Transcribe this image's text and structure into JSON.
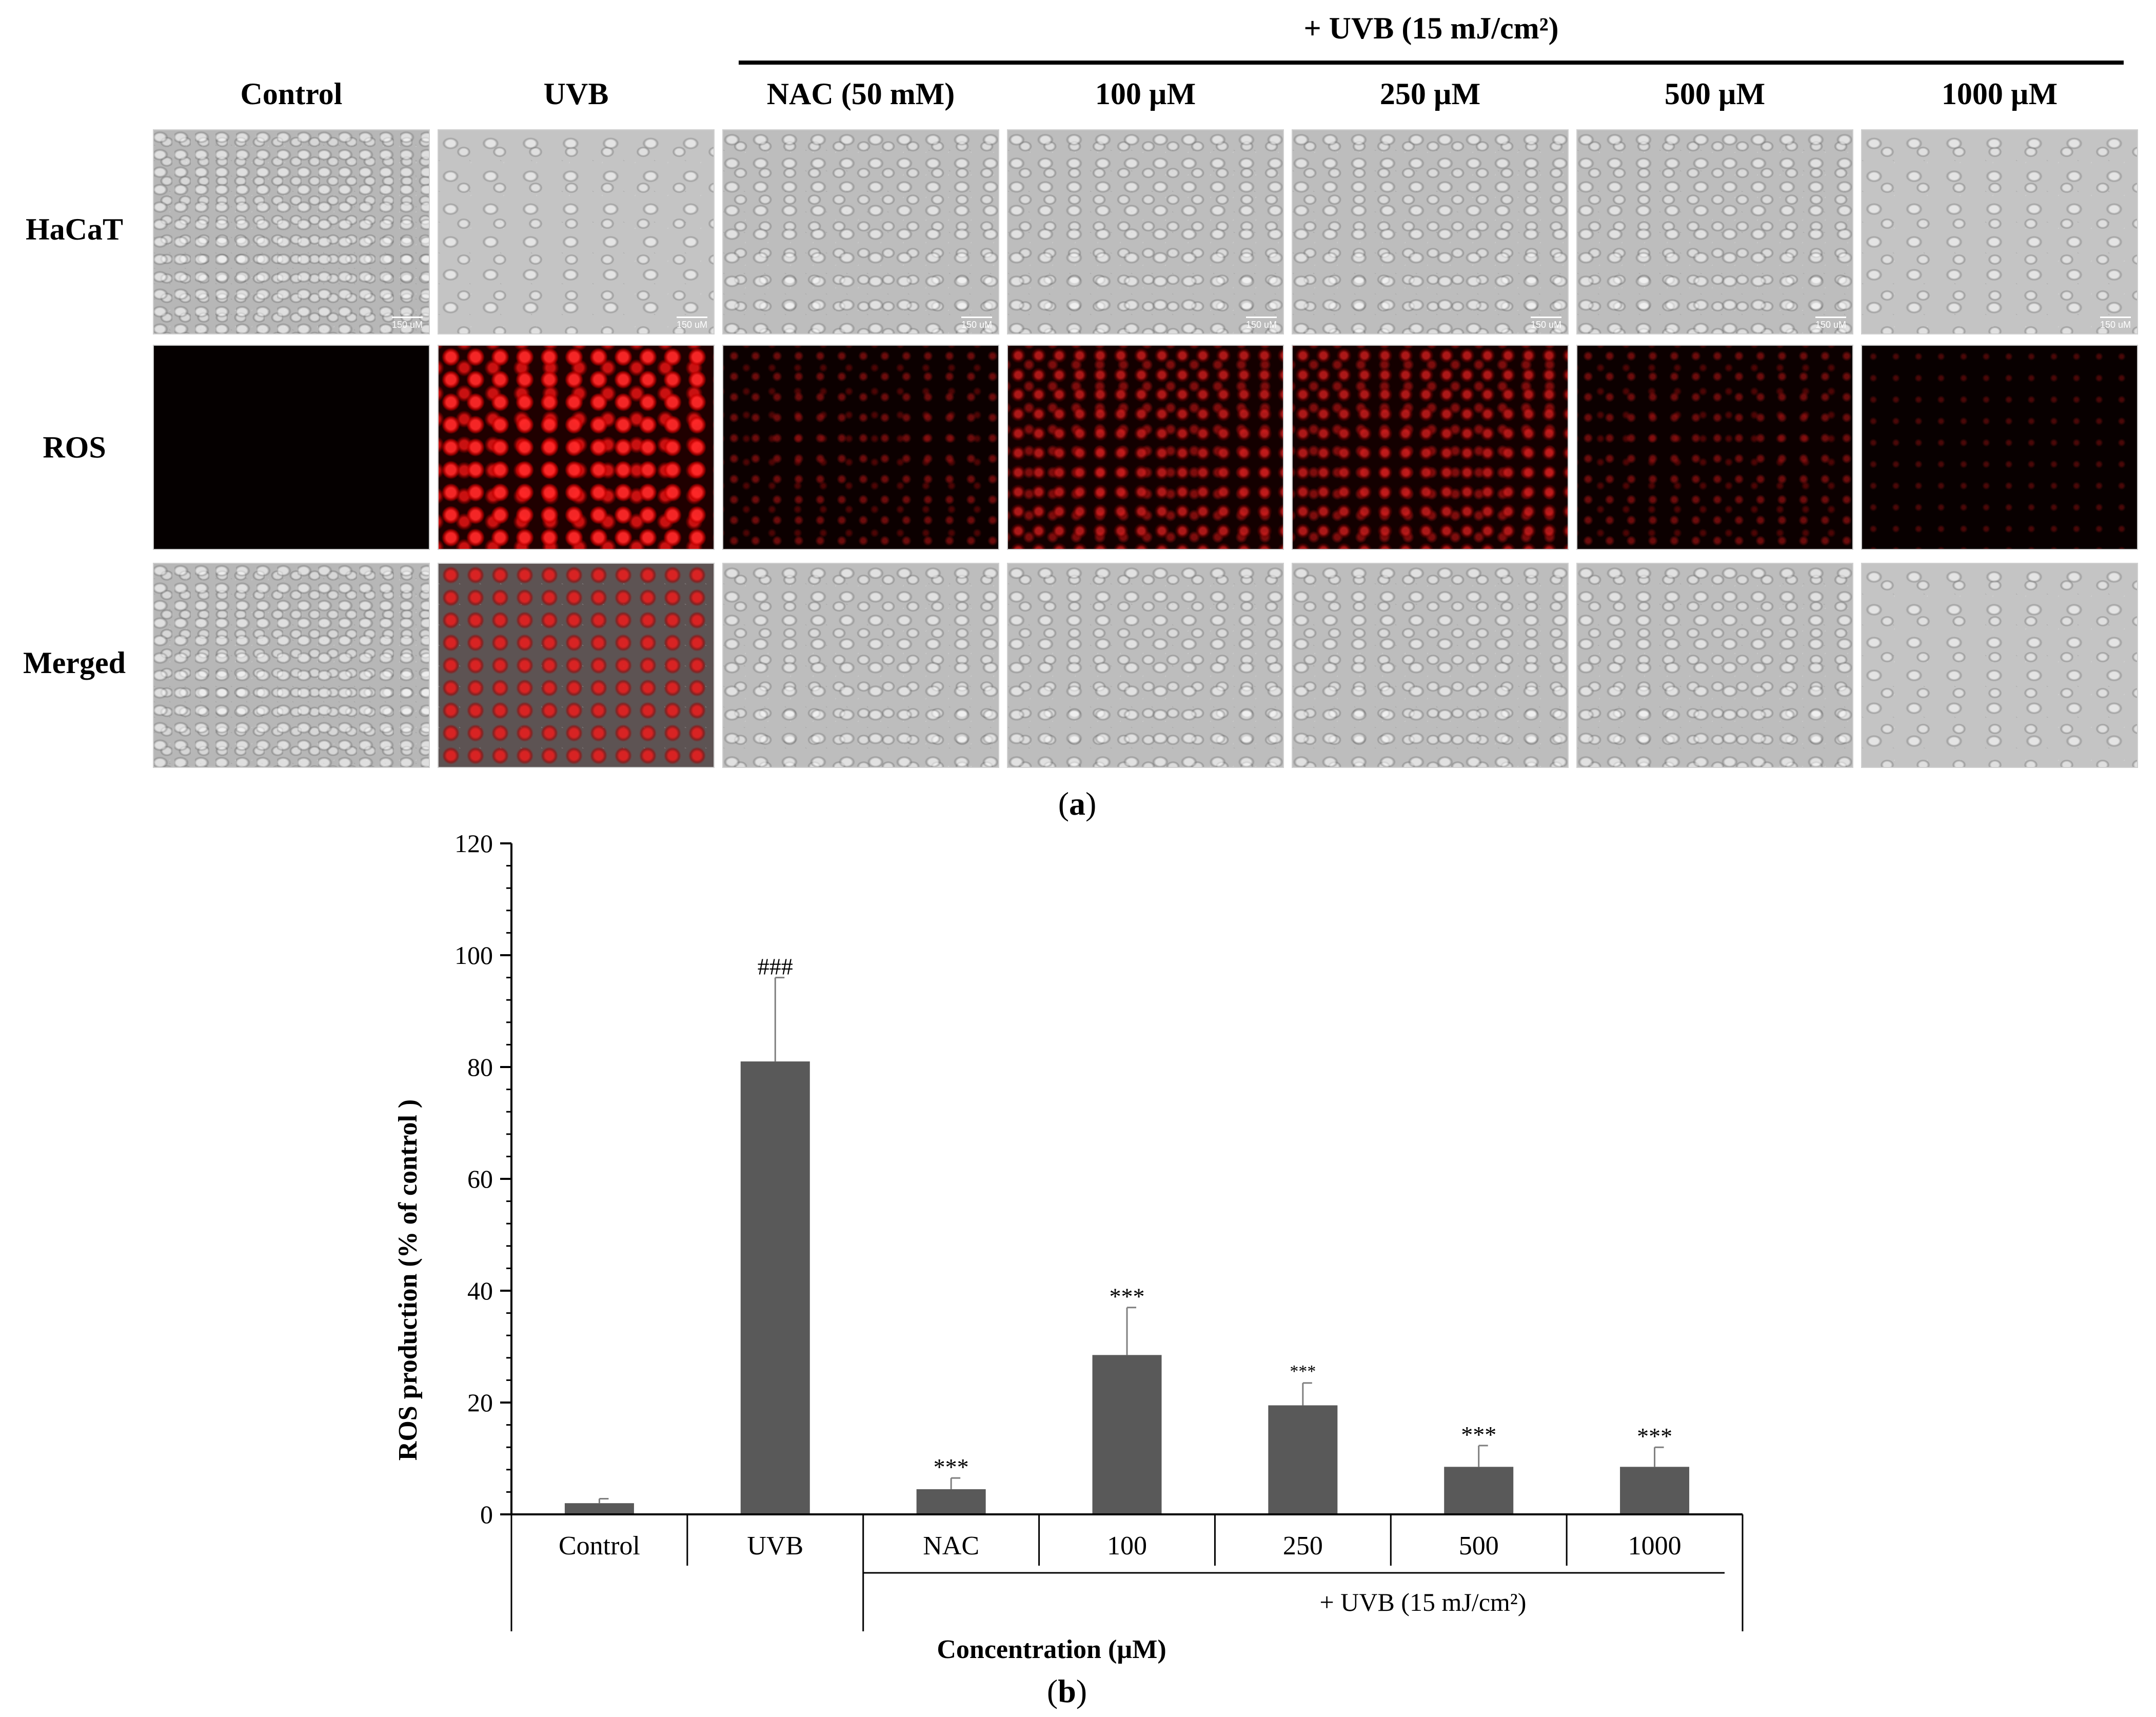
{
  "panel_a": {
    "label_letter": "a",
    "uvb_group_label": "+ UVB (15 mJ/cm²)",
    "columns": [
      "Control",
      "UVB",
      "NAC (50 mM)",
      "100 µM",
      "250 µM",
      "500 µM",
      "1000 µM"
    ],
    "rows": [
      "HaCaT",
      "ROS",
      "Merged"
    ],
    "scale_bar": "150 uM"
  },
  "panel_b": {
    "label_letter": "b",
    "group_label": "+ UVB (15 mJ/cm²)"
  },
  "chart_data": {
    "type": "bar",
    "title": "",
    "categories": [
      "Control",
      "UVB",
      "NAC",
      "100",
      "250",
      "500",
      "1000"
    ],
    "values": [
      2,
      81,
      4.5,
      28.5,
      19.5,
      8.5,
      8.5
    ],
    "errors": [
      0.8,
      15,
      2,
      8.5,
      4,
      3.8,
      3.5
    ],
    "significance": [
      "",
      "###",
      "***",
      "***",
      "***",
      "***",
      "***"
    ],
    "xlabel": "Concentration (µM)",
    "ylabel": "ROS production (% of control )",
    "ylim": [
      0,
      120
    ],
    "yticks": [
      0,
      20,
      40,
      60,
      80,
      100,
      120
    ],
    "bar_color": "#595959",
    "grid": false,
    "legend": "none"
  }
}
